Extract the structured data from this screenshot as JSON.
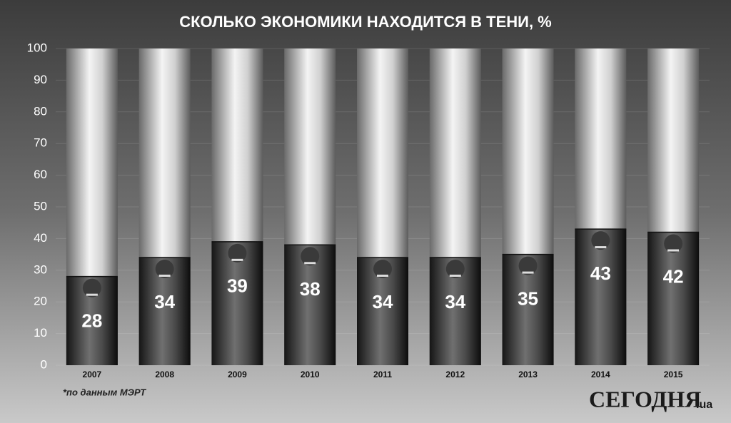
{
  "chart_data": {
    "type": "bar",
    "title": "СКОЛЬКО ЭКОНОМИКИ НАХОДИТСЯ В ТЕНИ, %",
    "categories": [
      "2007",
      "2008",
      "2009",
      "2010",
      "2011",
      "2012",
      "2013",
      "2014",
      "2015"
    ],
    "values": [
      28,
      34,
      39,
      38,
      34,
      34,
      35,
      43,
      42
    ],
    "color": "#2e2e2e",
    "ylim": [
      0,
      100
    ],
    "yticks": [
      0,
      10,
      20,
      30,
      40,
      50,
      60,
      70,
      80,
      90,
      100
    ],
    "grid": true,
    "note": "*по данным МЭРТ"
  },
  "brand": "СЕГОДНЯ",
  "brand_domain": ".ua"
}
